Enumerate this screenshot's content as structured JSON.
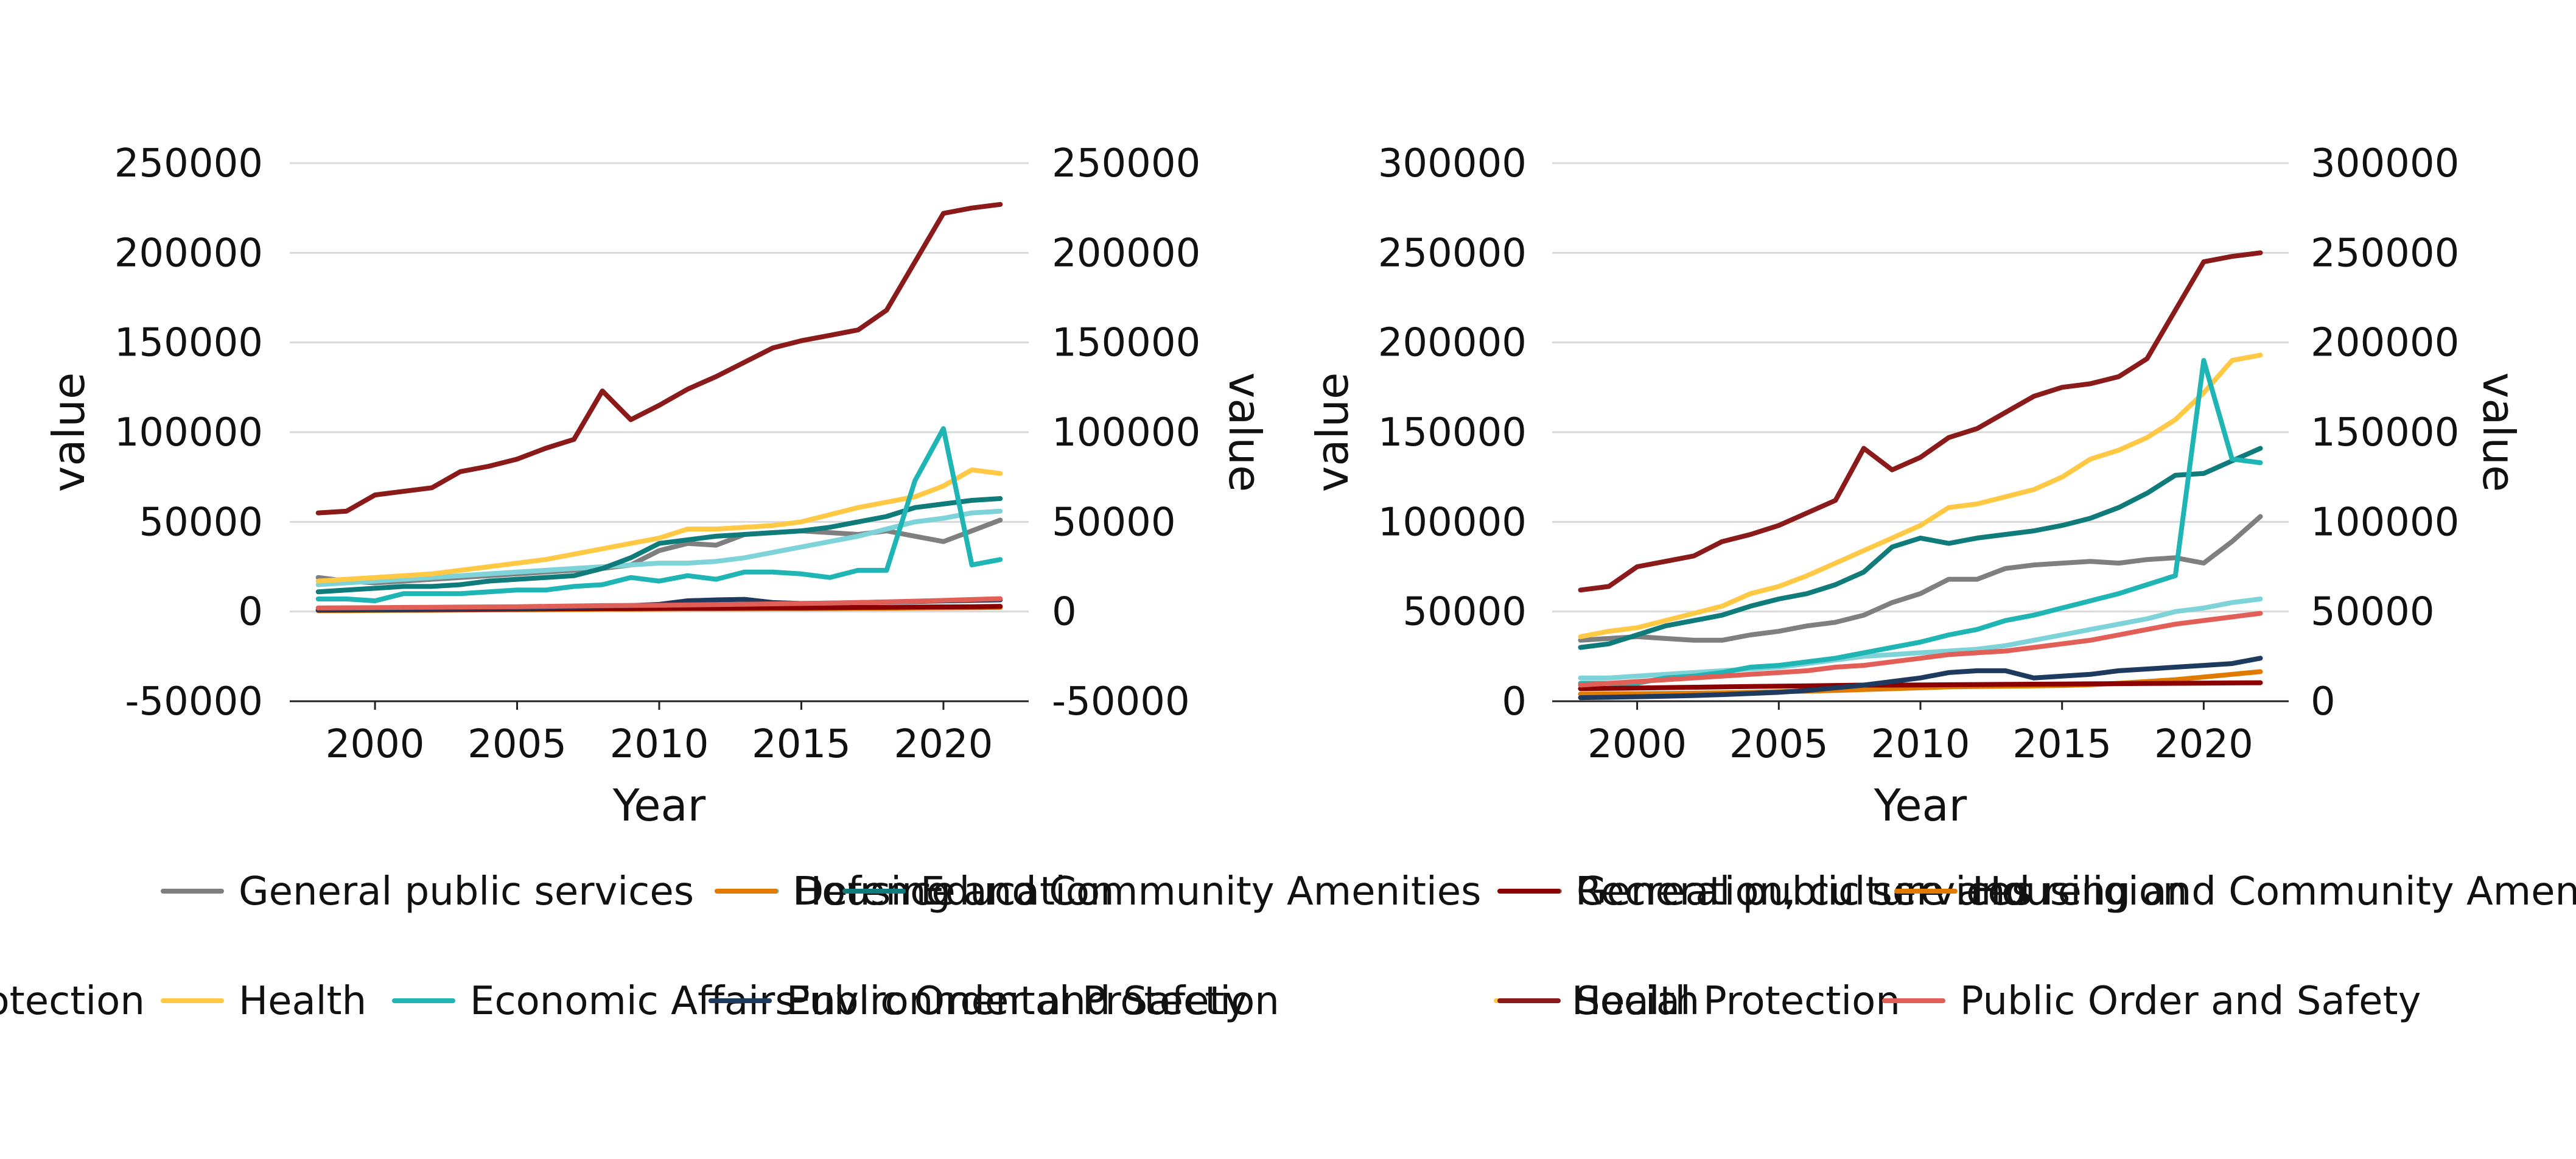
{
  "chart_data": [
    {
      "type": "line",
      "xlabel": "Year",
      "ylabel": "value",
      "ylabel_right": "value",
      "xlim": [
        1997,
        2023
      ],
      "ylim": [
        -50000,
        250000
      ],
      "xticks": [
        2000,
        2005,
        2010,
        2015,
        2020
      ],
      "yticks": [
        -50000,
        0,
        50000,
        100000,
        150000,
        200000,
        250000
      ],
      "grid": true,
      "x": [
        1998,
        1999,
        2000,
        2001,
        2002,
        2003,
        2004,
        2005,
        2006,
        2007,
        2008,
        2009,
        2010,
        2011,
        2012,
        2013,
        2014,
        2015,
        2016,
        2017,
        2018,
        2019,
        2020,
        2021,
        2022
      ],
      "series": [
        {
          "name": "General public services",
          "color": "#7f7f7f",
          "values": [
            19000,
            17000,
            16000,
            17000,
            18000,
            19000,
            20000,
            21000,
            22000,
            23000,
            24000,
            26000,
            34000,
            38000,
            37000,
            43000,
            44000,
            45000,
            44000,
            43000,
            45000,
            42000,
            39000,
            45000,
            51000
          ]
        },
        {
          "name": "Defence",
          "color": "#7dd3d8",
          "values": [
            15000,
            16000,
            17000,
            18000,
            19000,
            20000,
            21000,
            22000,
            23000,
            24000,
            25000,
            26000,
            27000,
            27000,
            28000,
            30000,
            33000,
            36000,
            39000,
            42000,
            46000,
            50000,
            52000,
            55000,
            56000
          ]
        },
        {
          "name": "Housing and Community Amenities",
          "color": "#e07b00",
          "values": [
            500,
            500,
            600,
            700,
            700,
            800,
            900,
            1000,
            1100,
            1200,
            1300,
            1300,
            1400,
            1500,
            1500,
            1500,
            1600,
            1600,
            1700,
            1800,
            1900,
            2000,
            2100,
            2200,
            2300
          ]
        },
        {
          "name": "Education",
          "color": "#0f7b7b",
          "values": [
            11000,
            12000,
            13000,
            14000,
            14000,
            15000,
            17000,
            18000,
            19000,
            20000,
            24000,
            30000,
            38000,
            40000,
            42000,
            43000,
            44000,
            45000,
            47000,
            50000,
            53000,
            58000,
            60000,
            62000,
            63000
          ]
        },
        {
          "name": "Recreation, culture and religion",
          "color": "#8b0000",
          "values": [
            800,
            900,
            1000,
            1000,
            1100,
            1200,
            1300,
            1400,
            1500,
            1600,
            1700,
            1700,
            1800,
            1900,
            1900,
            2000,
            2100,
            2100,
            2200,
            2300,
            2400,
            2500,
            2600,
            2700,
            2900
          ]
        },
        {
          "name": "Environmental Protection",
          "color": "#1f3a5f",
          "values": [
            1000,
            1100,
            1200,
            1300,
            1400,
            1500,
            1700,
            1900,
            2100,
            2400,
            2800,
            3300,
            4000,
            6000,
            6500,
            6800,
            5000,
            4500,
            4700,
            5000,
            5300,
            5600,
            5900,
            6200,
            6500
          ]
        },
        {
          "name": "Health",
          "color": "#ffc845",
          "values": [
            17000,
            18000,
            19000,
            20000,
            21000,
            23000,
            25000,
            27000,
            29000,
            32000,
            35000,
            38000,
            41000,
            46000,
            46000,
            47000,
            48000,
            50000,
            54000,
            58000,
            61000,
            64000,
            70000,
            79000,
            77000
          ]
        },
        {
          "name": "Economic Affairs",
          "color": "#1fb5b5",
          "values": [
            7000,
            7000,
            6000,
            10000,
            10000,
            10000,
            11000,
            12000,
            12000,
            14000,
            15000,
            19000,
            17000,
            20000,
            18000,
            22000,
            22000,
            21000,
            19000,
            23000,
            23000,
            73000,
            102000,
            26000,
            29000
          ]
        },
        {
          "name": "Social Protection",
          "color": "#8b1a1a",
          "values": [
            55000,
            56000,
            65000,
            67000,
            69000,
            78000,
            81000,
            85000,
            91000,
            96000,
            123000,
            107000,
            115000,
            124000,
            131000,
            139000,
            147000,
            151000,
            154000,
            157000,
            168000,
            195000,
            222000,
            225000,
            227000
          ]
        },
        {
          "name": "Public Order and Safety",
          "color": "#e25f57",
          "values": [
            2000,
            2100,
            2200,
            2300,
            2400,
            2500,
            2600,
            2700,
            2900,
            3100,
            3300,
            3400,
            3500,
            3700,
            3900,
            4100,
            4300,
            4500,
            4700,
            5000,
            5400,
            5800,
            6200,
            6700,
            7200
          ]
        }
      ]
    },
    {
      "type": "line",
      "xlabel": "Year",
      "ylabel": "value",
      "ylabel_right": "value",
      "xlim": [
        1997,
        2023
      ],
      "ylim": [
        0,
        300000
      ],
      "xticks": [
        2000,
        2005,
        2010,
        2015,
        2020
      ],
      "yticks": [
        0,
        50000,
        100000,
        150000,
        200000,
        250000,
        300000
      ],
      "grid": true,
      "x": [
        1998,
        1999,
        2000,
        2001,
        2002,
        2003,
        2004,
        2005,
        2006,
        2007,
        2008,
        2009,
        2010,
        2011,
        2012,
        2013,
        2014,
        2015,
        2016,
        2017,
        2018,
        2019,
        2020,
        2021,
        2022
      ],
      "series": [
        {
          "name": "General public services",
          "color": "#7f7f7f",
          "values": [
            34000,
            35000,
            36000,
            35000,
            34000,
            34000,
            37000,
            39000,
            42000,
            44000,
            48000,
            55000,
            60000,
            68000,
            68000,
            74000,
            76000,
            77000,
            78000,
            77000,
            79000,
            80000,
            77000,
            89000,
            103000
          ]
        },
        {
          "name": "Defence",
          "color": "#7dd3d8",
          "values": [
            13000,
            13000,
            14000,
            15000,
            16000,
            17000,
            18000,
            19000,
            21000,
            23000,
            25000,
            26000,
            27000,
            28000,
            29000,
            31000,
            34000,
            37000,
            40000,
            43000,
            46000,
            50000,
            52000,
            55000,
            57000
          ]
        },
        {
          "name": "Housing and Community Amenities",
          "color": "#e07b00",
          "values": [
            4000,
            4100,
            4200,
            4300,
            4500,
            4700,
            5000,
            5300,
            5600,
            6000,
            6500,
            7000,
            7500,
            8000,
            8200,
            8400,
            8600,
            8800,
            9200,
            10000,
            11000,
            12000,
            13500,
            15000,
            16500
          ]
        },
        {
          "name": "Education",
          "color": "#0f7b7b",
          "values": [
            30000,
            32000,
            37000,
            42000,
            45000,
            48000,
            53000,
            57000,
            60000,
            65000,
            72000,
            86000,
            91000,
            88000,
            91000,
            93000,
            95000,
            98000,
            102000,
            108000,
            116000,
            126000,
            127000,
            134000,
            141000
          ]
        },
        {
          "name": "Recreation, culture and religion",
          "color": "#8b0000",
          "values": [
            7000,
            7200,
            7400,
            7600,
            7800,
            8000,
            8200,
            8400,
            8600,
            8800,
            9000,
            9000,
            9100,
            9200,
            9300,
            9400,
            9500,
            9600,
            9700,
            9800,
            9900,
            10000,
            10100,
            10200,
            10300
          ]
        },
        {
          "name": "Environmental Protection",
          "color": "#1f3a5f",
          "values": [
            2000,
            2200,
            2500,
            2800,
            3200,
            3700,
            4300,
            5000,
            6000,
            7500,
            9000,
            11000,
            13000,
            16000,
            17000,
            17000,
            13000,
            14000,
            15000,
            17000,
            18000,
            19000,
            20000,
            21000,
            24000
          ]
        },
        {
          "name": "Health",
          "color": "#ffc845",
          "values": [
            36000,
            39000,
            41000,
            45000,
            49000,
            53000,
            60000,
            64000,
            70000,
            77000,
            84000,
            91000,
            98000,
            108000,
            110000,
            114000,
            118000,
            125000,
            135000,
            140000,
            147000,
            157000,
            172000,
            190000,
            193000
          ]
        },
        {
          "name": "Economic Affairs",
          "color": "#1fb5b5",
          "values": [
            10000,
            10000,
            10000,
            13000,
            14000,
            16000,
            19000,
            20000,
            22000,
            24000,
            27000,
            30000,
            33000,
            37000,
            40000,
            45000,
            48000,
            52000,
            56000,
            60000,
            65000,
            70000,
            190000,
            135000,
            133000
          ]
        },
        {
          "name": "Social Protection",
          "color": "#8b1a1a",
          "values": [
            62000,
            64000,
            75000,
            78000,
            81000,
            89000,
            93000,
            98000,
            105000,
            112000,
            141000,
            129000,
            136000,
            147000,
            152000,
            161000,
            170000,
            175000,
            177000,
            181000,
            191000,
            218000,
            245000,
            248000,
            250000
          ]
        },
        {
          "name": "Public Order and Safety",
          "color": "#e25f57",
          "values": [
            9000,
            10000,
            11000,
            12000,
            13000,
            14000,
            15000,
            16000,
            17000,
            19000,
            20000,
            22000,
            24000,
            26000,
            27000,
            28000,
            30000,
            32000,
            34000,
            37000,
            40000,
            43000,
            45000,
            47000,
            49000
          ]
        }
      ]
    }
  ],
  "legend": {
    "row1": [
      {
        "label": "General public services",
        "color": "#7f7f7f"
      },
      {
        "label": "Defence",
        "color": "#7dd3d8"
      },
      {
        "label": "Housing and Community Amenities",
        "color": "#e07b00"
      },
      {
        "label": "Education",
        "color": "#0f7b7b"
      },
      {
        "label": "General public services",
        "color": "#7f7f7f"
      },
      {
        "label": "Recreation, culture and religion",
        "color": "#8b0000"
      },
      {
        "label": "Housing and Community Amenities",
        "color": "#e07b00"
      }
    ],
    "row2": [
      {
        "label": "Social Protection",
        "color": "#8b1a1a"
      },
      {
        "label": "Health",
        "color": "#ffc845"
      },
      {
        "label": "Economic Affairs",
        "color": "#1fb5b5"
      },
      {
        "label": "Public Order and Safety",
        "color": "#e25f57"
      },
      {
        "label": "Environmental Protection",
        "color": "#1f3a5f"
      },
      {
        "label": "Health",
        "color": "#ffc845"
      },
      {
        "label": "Social Protection",
        "color": "#8b1a1a"
      },
      {
        "label": "Public Order and Safety",
        "color": "#e25f57"
      }
    ]
  }
}
